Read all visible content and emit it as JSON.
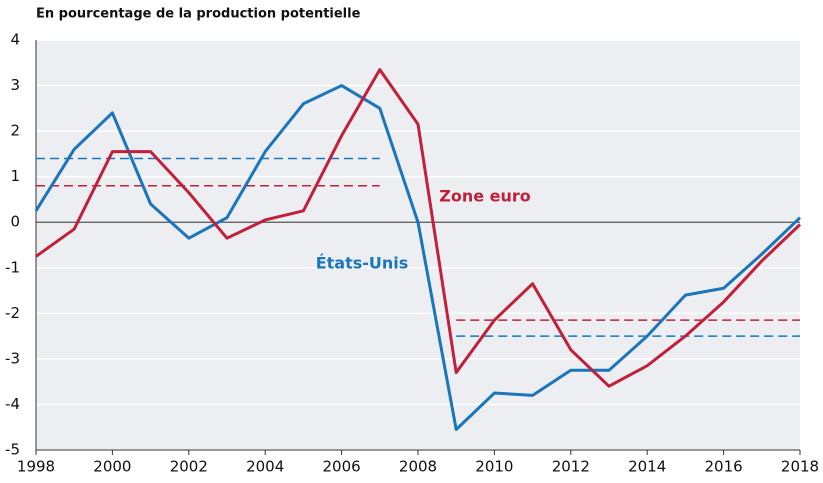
{
  "chart_data": {
    "type": "line",
    "title": "En pourcentage de la production potentielle",
    "x": [
      1998,
      1999,
      2000,
      2001,
      2002,
      2003,
      2004,
      2005,
      2006,
      2007,
      2008,
      2009,
      2010,
      2011,
      2012,
      2013,
      2014,
      2015,
      2016,
      2017,
      2018
    ],
    "series": [
      {
        "name": "États-Unis",
        "color": "#1a75bb",
        "values": [
          0.25,
          1.6,
          2.4,
          0.4,
          -0.35,
          0.1,
          1.55,
          2.6,
          3.0,
          2.5,
          0.0,
          -4.55,
          -3.75,
          -3.8,
          -3.25,
          -3.25,
          -2.5,
          -1.6,
          -1.45,
          -0.7,
          0.1
        ]
      },
      {
        "name": "Zone euro",
        "color": "#c0203a",
        "values": [
          -0.75,
          -0.15,
          1.55,
          1.55,
          0.65,
          -0.35,
          0.05,
          0.25,
          1.9,
          3.35,
          2.15,
          -3.3,
          -2.15,
          -1.35,
          -2.8,
          -3.6,
          -3.15,
          -2.5,
          -1.75,
          -0.85,
          -0.05
        ]
      }
    ],
    "reference_lines": [
      {
        "color": "#1a75bb",
        "y": 1.4,
        "x": [
          1998,
          2007
        ]
      },
      {
        "color": "#c0203a",
        "y": 0.8,
        "x": [
          1998,
          2007
        ]
      },
      {
        "color": "#c0203a",
        "y": -2.15,
        "x": [
          2009,
          2018
        ]
      },
      {
        "color": "#1a75bb",
        "y": -2.5,
        "x": [
          2009,
          2018
        ]
      }
    ],
    "xlim": [
      1998,
      2018
    ],
    "xticks": [
      1998,
      2000,
      2002,
      2004,
      2006,
      2008,
      2010,
      2012,
      2014,
      2016,
      2018
    ],
    "ylim": [
      -5,
      4
    ],
    "yticks": [
      -5,
      -4,
      -3,
      -2,
      -1,
      0,
      1,
      2,
      3,
      4
    ],
    "grid": true
  }
}
